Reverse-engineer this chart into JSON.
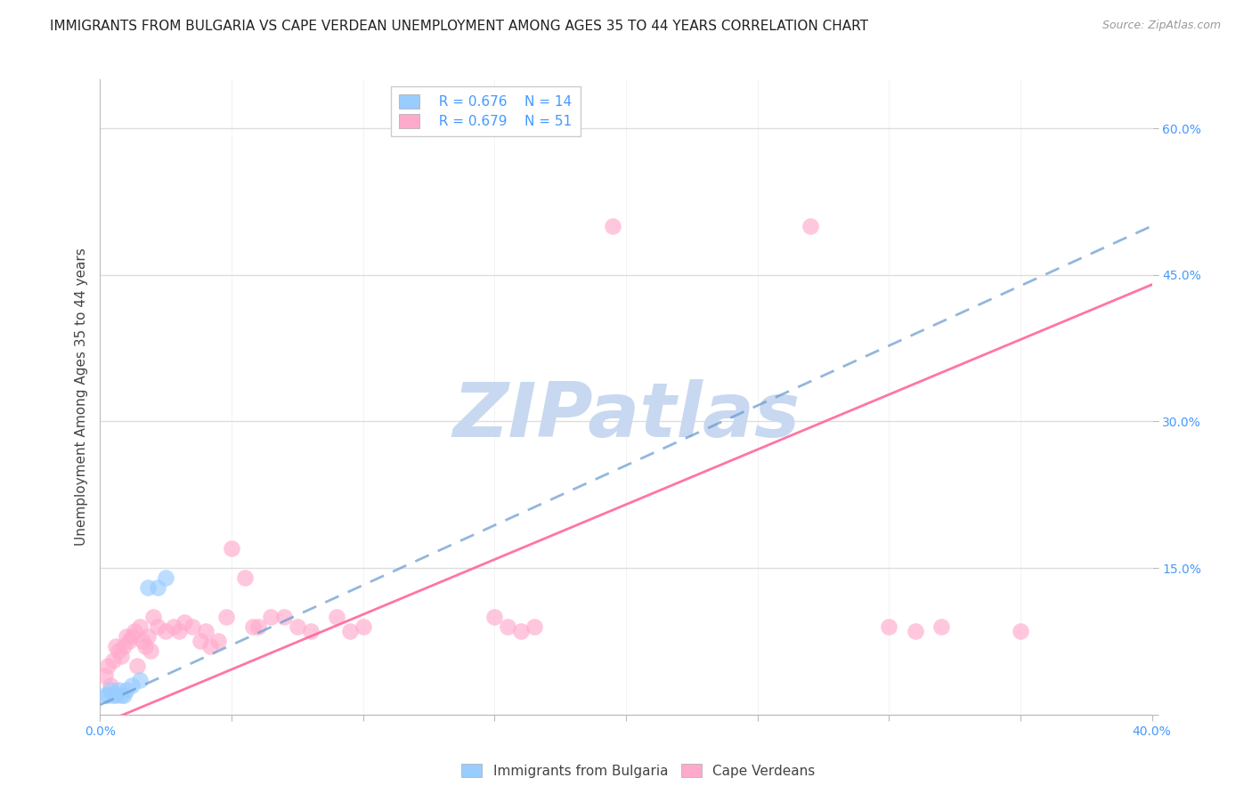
{
  "title": "IMMIGRANTS FROM BULGARIA VS CAPE VERDEAN UNEMPLOYMENT AMONG AGES 35 TO 44 YEARS CORRELATION CHART",
  "source": "Source: ZipAtlas.com",
  "ylabel": "Unemployment Among Ages 35 to 44 years",
  "xlim": [
    0.0,
    0.4
  ],
  "ylim": [
    0.0,
    0.65
  ],
  "xticks": [
    0.0,
    0.05,
    0.1,
    0.15,
    0.2,
    0.25,
    0.3,
    0.35,
    0.4
  ],
  "xticklabels": [
    "0.0%",
    "",
    "",
    "",
    "",
    "",
    "",
    "",
    "40.0%"
  ],
  "yticks": [
    0.0,
    0.15,
    0.3,
    0.45,
    0.6
  ],
  "yticklabels": [
    "",
    "15.0%",
    "30.0%",
    "45.0%",
    "60.0%"
  ],
  "background_color": "#ffffff",
  "grid_color": "#dddddd",
  "watermark": "ZIPatlas",
  "watermark_color": "#c8d8f0",
  "legend_r1": "R = 0.676",
  "legend_n1": "N = 14",
  "legend_r2": "R = 0.679",
  "legend_n2": "N = 51",
  "bulgaria_color": "#99ccff",
  "capeverde_color": "#ffaacc",
  "bulgaria_line_color": "#6699cc",
  "capeverde_line_color": "#ff6699",
  "bulgaria_line": [
    [
      0.0,
      0.01
    ],
    [
      0.4,
      0.5
    ]
  ],
  "capeverde_line": [
    [
      0.0,
      -0.01
    ],
    [
      0.4,
      0.44
    ]
  ],
  "bulgaria_scatter": [
    [
      0.002,
      0.02
    ],
    [
      0.003,
      0.02
    ],
    [
      0.004,
      0.025
    ],
    [
      0.005,
      0.02
    ],
    [
      0.006,
      0.02
    ],
    [
      0.007,
      0.025
    ],
    [
      0.008,
      0.02
    ],
    [
      0.009,
      0.02
    ],
    [
      0.01,
      0.025
    ],
    [
      0.012,
      0.03
    ],
    [
      0.015,
      0.035
    ],
    [
      0.018,
      0.13
    ],
    [
      0.022,
      0.13
    ],
    [
      0.025,
      0.14
    ]
  ],
  "capeverde_scatter": [
    [
      0.002,
      0.04
    ],
    [
      0.003,
      0.05
    ],
    [
      0.004,
      0.03
    ],
    [
      0.005,
      0.055
    ],
    [
      0.006,
      0.07
    ],
    [
      0.007,
      0.065
    ],
    [
      0.008,
      0.06
    ],
    [
      0.009,
      0.07
    ],
    [
      0.01,
      0.08
    ],
    [
      0.011,
      0.075
    ],
    [
      0.012,
      0.08
    ],
    [
      0.013,
      0.085
    ],
    [
      0.014,
      0.05
    ],
    [
      0.015,
      0.09
    ],
    [
      0.016,
      0.075
    ],
    [
      0.017,
      0.07
    ],
    [
      0.018,
      0.08
    ],
    [
      0.019,
      0.065
    ],
    [
      0.02,
      0.1
    ],
    [
      0.022,
      0.09
    ],
    [
      0.025,
      0.085
    ],
    [
      0.028,
      0.09
    ],
    [
      0.03,
      0.085
    ],
    [
      0.032,
      0.095
    ],
    [
      0.035,
      0.09
    ],
    [
      0.038,
      0.075
    ],
    [
      0.04,
      0.085
    ],
    [
      0.042,
      0.07
    ],
    [
      0.045,
      0.075
    ],
    [
      0.048,
      0.1
    ],
    [
      0.05,
      0.17
    ],
    [
      0.055,
      0.14
    ],
    [
      0.058,
      0.09
    ],
    [
      0.06,
      0.09
    ],
    [
      0.065,
      0.1
    ],
    [
      0.07,
      0.1
    ],
    [
      0.075,
      0.09
    ],
    [
      0.08,
      0.085
    ],
    [
      0.09,
      0.1
    ],
    [
      0.095,
      0.085
    ],
    [
      0.1,
      0.09
    ],
    [
      0.15,
      0.1
    ],
    [
      0.155,
      0.09
    ],
    [
      0.16,
      0.085
    ],
    [
      0.165,
      0.09
    ],
    [
      0.195,
      0.5
    ],
    [
      0.27,
      0.5
    ],
    [
      0.3,
      0.09
    ],
    [
      0.31,
      0.085
    ],
    [
      0.32,
      0.09
    ],
    [
      0.35,
      0.085
    ]
  ],
  "title_fontsize": 11,
  "axis_fontsize": 11,
  "tick_fontsize": 10,
  "legend_fontsize": 11,
  "ylabel_color": "#444444",
  "tick_color_right": "#4499ff",
  "tick_color_bottom": "#4499ff"
}
